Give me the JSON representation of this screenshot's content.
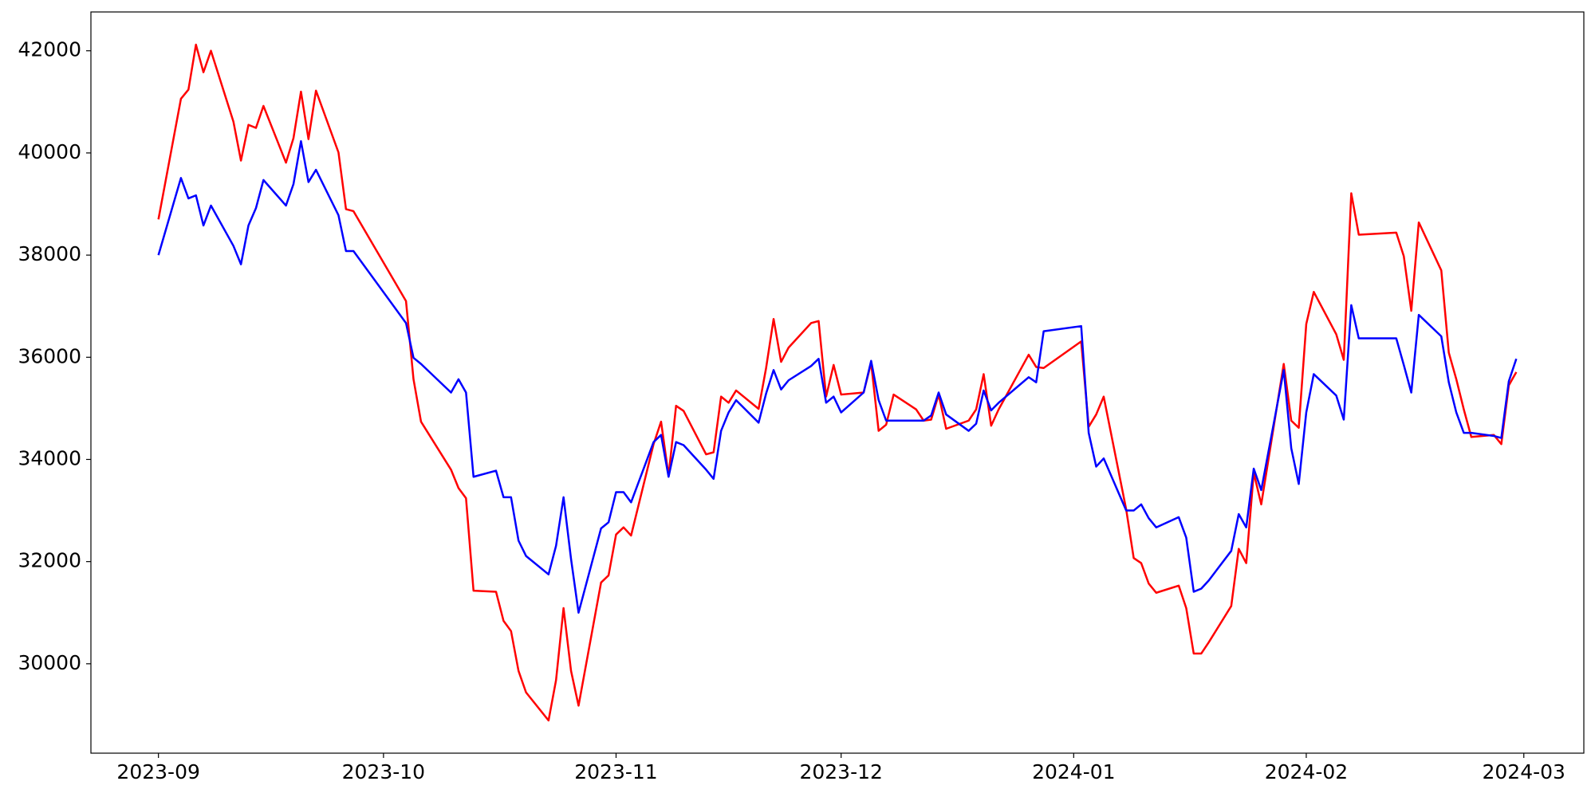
{
  "chart_data": {
    "type": "line",
    "x": [
      "2023-09-01",
      "2023-09-04",
      "2023-09-05",
      "2023-09-06",
      "2023-09-07",
      "2023-09-08",
      "2023-09-11",
      "2023-09-12",
      "2023-09-13",
      "2023-09-14",
      "2023-09-15",
      "2023-09-18",
      "2023-09-19",
      "2023-09-20",
      "2023-09-21",
      "2023-09-22",
      "2023-09-25",
      "2023-09-26",
      "2023-09-27",
      "2023-10-04",
      "2023-10-05",
      "2023-10-06",
      "2023-10-10",
      "2023-10-11",
      "2023-10-12",
      "2023-10-13",
      "2023-10-16",
      "2023-10-17",
      "2023-10-18",
      "2023-10-19",
      "2023-10-20",
      "2023-10-23",
      "2023-10-24",
      "2023-10-25",
      "2023-10-26",
      "2023-10-27",
      "2023-10-30",
      "2023-10-31",
      "2023-11-01",
      "2023-11-02",
      "2023-11-03",
      "2023-11-06",
      "2023-11-07",
      "2023-11-08",
      "2023-11-09",
      "2023-11-10",
      "2023-11-13",
      "2023-11-14",
      "2023-11-15",
      "2023-11-16",
      "2023-11-17",
      "2023-11-20",
      "2023-11-21",
      "2023-11-22",
      "2023-11-23",
      "2023-11-24",
      "2023-11-27",
      "2023-11-28",
      "2023-11-29",
      "2023-11-30",
      "2023-12-01",
      "2023-12-04",
      "2023-12-05",
      "2023-12-06",
      "2023-12-07",
      "2023-12-08",
      "2023-12-11",
      "2023-12-12",
      "2023-12-13",
      "2023-12-14",
      "2023-12-15",
      "2023-12-18",
      "2023-12-19",
      "2023-12-20",
      "2023-12-21",
      "2023-12-22",
      "2023-12-26",
      "2023-12-27",
      "2023-12-28",
      "2024-01-02",
      "2024-01-03",
      "2024-01-04",
      "2024-01-05",
      "2024-01-08",
      "2024-01-09",
      "2024-01-10",
      "2024-01-11",
      "2024-01-12",
      "2024-01-15",
      "2024-01-16",
      "2024-01-17",
      "2024-01-18",
      "2024-01-19",
      "2024-01-22",
      "2024-01-23",
      "2024-01-24",
      "2024-01-25",
      "2024-01-26",
      "2024-01-29",
      "2024-01-30",
      "2024-01-31",
      "2024-02-01",
      "2024-02-02",
      "2024-02-05",
      "2024-02-06",
      "2024-02-07",
      "2024-02-08",
      "2024-02-13",
      "2024-02-14",
      "2024-02-15",
      "2024-02-16",
      "2024-02-19",
      "2024-02-20",
      "2024-02-21",
      "2024-02-22",
      "2024-02-23",
      "2024-02-26",
      "2024-02-27",
      "2024-02-28",
      "2024-02-29"
    ],
    "series": [
      {
        "color": "#ff0000",
        "values": [
          38700,
          41060,
          41240,
          42120,
          41580,
          42000,
          40610,
          39850,
          40550,
          40490,
          40920,
          39810,
          40290,
          41200,
          40270,
          41220,
          40010,
          38900,
          38860,
          37100,
          35570,
          34740,
          33800,
          33440,
          33240,
          31430,
          31410,
          30840,
          30640,
          29860,
          29440,
          28890,
          29680,
          31090,
          29860,
          29180,
          31590,
          31730,
          32530,
          32670,
          32510,
          34300,
          34740,
          33680,
          35050,
          34950,
          34100,
          34140,
          35230,
          35110,
          35350,
          34990,
          35790,
          36750,
          35910,
          36190,
          36670,
          36710,
          35230,
          35850,
          35270,
          35310,
          35890,
          34560,
          34680,
          35270,
          34980,
          34760,
          34780,
          35270,
          34600,
          34760,
          34980,
          35670,
          34660,
          34980,
          36050,
          35810,
          35790,
          36310,
          34640,
          34880,
          35230,
          33020,
          32070,
          31970,
          31570,
          31390,
          31530,
          31090,
          30200,
          30200,
          30420,
          31130,
          32250,
          31970,
          33740,
          33120,
          35870,
          34760,
          34620,
          36650,
          37280,
          36450,
          35950,
          39210,
          38400,
          38440,
          37980,
          36910,
          38640,
          37700,
          36090,
          35570,
          34980,
          34440,
          34480,
          34300,
          35450,
          35710
        ]
      },
      {
        "color": "#0000ff",
        "values": [
          38000,
          39510,
          39110,
          39170,
          38580,
          38970,
          38180,
          37820,
          38580,
          38920,
          39470,
          38970,
          39390,
          40230,
          39430,
          39670,
          38780,
          38080,
          38080,
          36670,
          35990,
          35870,
          35310,
          35570,
          35310,
          33660,
          33780,
          33260,
          33260,
          32410,
          32110,
          31750,
          32310,
          33260,
          32050,
          31000,
          32650,
          32770,
          33360,
          33360,
          33160,
          34340,
          34480,
          33660,
          34340,
          34280,
          33800,
          33620,
          34560,
          34920,
          35160,
          34720,
          35290,
          35750,
          35370,
          35550,
          35830,
          35970,
          35110,
          35230,
          34920,
          35310,
          35930,
          35160,
          34760,
          34760,
          34760,
          34760,
          34860,
          35310,
          34880,
          34560,
          34700,
          35350,
          34960,
          35110,
          35610,
          35510,
          36510,
          36610,
          34520,
          33860,
          34020,
          33000,
          33000,
          33120,
          32850,
          32670,
          32870,
          32470,
          31410,
          31470,
          31630,
          32210,
          32930,
          32670,
          33820,
          33400,
          35750,
          34220,
          33520,
          34920,
          35670,
          35250,
          34780,
          37020,
          36370,
          36370,
          35850,
          35310,
          36830,
          36410,
          35510,
          34920,
          34520,
          34520,
          34460,
          34420,
          35530,
          35970
        ]
      }
    ],
    "xlim": [
      "2023-08-23",
      "2024-03-09"
    ],
    "xticks": [
      {
        "value": "2023-09-01",
        "label": "2023-09"
      },
      {
        "value": "2023-10-01",
        "label": "2023-10"
      },
      {
        "value": "2023-11-01",
        "label": "2023-11"
      },
      {
        "value": "2023-12-01",
        "label": "2023-12"
      },
      {
        "value": "2024-01-01",
        "label": "2024-01"
      },
      {
        "value": "2024-02-01",
        "label": "2024-02"
      },
      {
        "value": "2024-03-01",
        "label": "2024-03"
      }
    ],
    "ylim": [
      28250,
      42760
    ],
    "yticks": [
      30000,
      32000,
      34000,
      36000,
      38000,
      40000,
      42000
    ],
    "grid": false
  }
}
